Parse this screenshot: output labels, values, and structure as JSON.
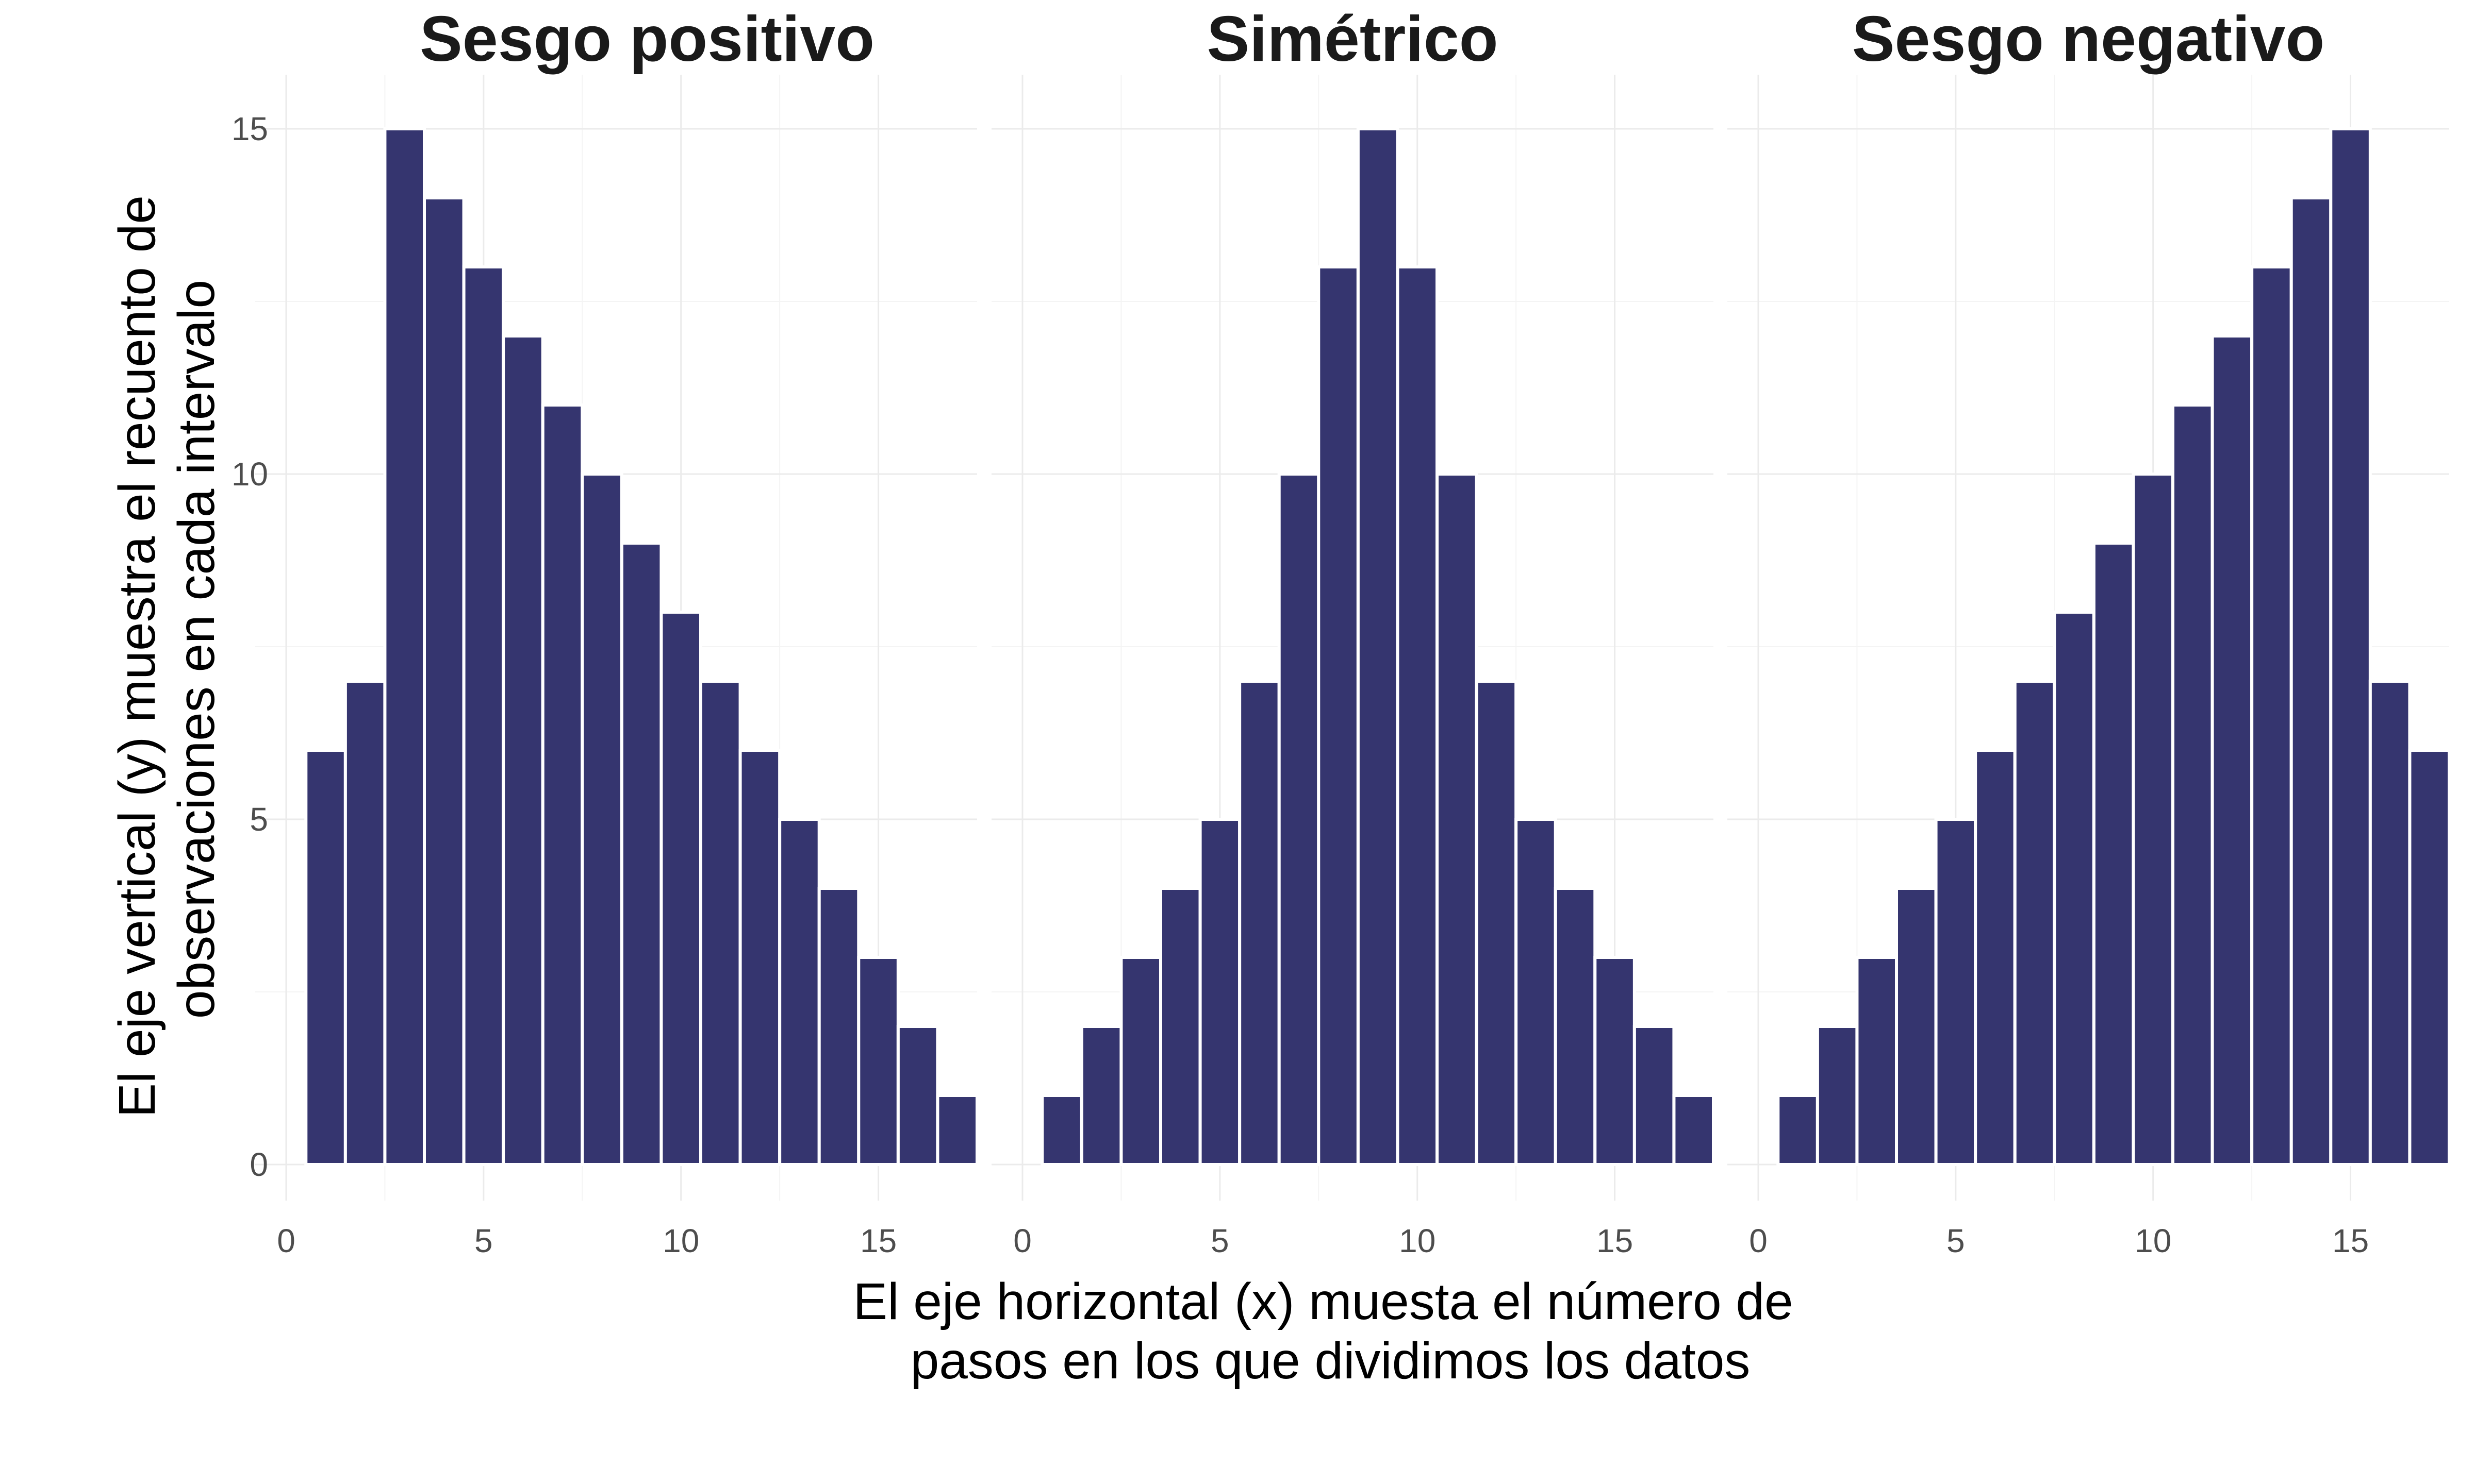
{
  "colors": {
    "bar": "#35356f",
    "background": "#ffffff"
  },
  "axis_titles": {
    "x": [
      "El eje horizontal (x) muesta el número de",
      "pasos en los que dividimos los datos"
    ],
    "y": [
      "El eje vertical (y) muestra el recuento de",
      "observaciones en cada intervalo"
    ]
  },
  "chart_data": [
    {
      "type": "bar",
      "title": "Sesgo positivo",
      "x": [
        1,
        2,
        3,
        4,
        5,
        6,
        7,
        8,
        9,
        10,
        11,
        12,
        13,
        14,
        15,
        16,
        17
      ],
      "values": [
        6,
        7,
        15,
        14,
        13,
        12,
        11,
        10,
        9,
        8,
        7,
        6,
        5,
        4,
        3,
        2,
        1
      ],
      "xlim": [
        0,
        17.5
      ],
      "ylim": [
        0,
        15
      ],
      "xticks": [
        0,
        5,
        10,
        15
      ],
      "yticks": [
        0,
        5,
        10,
        15
      ],
      "grid": true
    },
    {
      "type": "bar",
      "title": "Simétrico",
      "x": [
        1,
        2,
        3,
        4,
        5,
        6,
        7,
        8,
        9,
        10,
        11,
        12,
        13,
        14,
        15,
        16,
        17
      ],
      "values": [
        1,
        2,
        3,
        4,
        5,
        7,
        10,
        13,
        15,
        13,
        10,
        7,
        5,
        4,
        3,
        2,
        1
      ],
      "xlim": [
        0,
        17.5
      ],
      "ylim": [
        0,
        15
      ],
      "xticks": [
        0,
        5,
        10,
        15
      ],
      "yticks": [
        0,
        5,
        10,
        15
      ],
      "grid": true
    },
    {
      "type": "bar",
      "title": "Sesgo negativo",
      "x": [
        1,
        2,
        3,
        4,
        5,
        6,
        7,
        8,
        9,
        10,
        11,
        12,
        13,
        14,
        15,
        16,
        17
      ],
      "values": [
        1,
        2,
        3,
        4,
        5,
        6,
        7,
        8,
        9,
        10,
        11,
        12,
        13,
        14,
        15,
        7,
        6
      ],
      "xlim": [
        0,
        17.5
      ],
      "ylim": [
        0,
        15
      ],
      "xticks": [
        0,
        5,
        10,
        15
      ],
      "yticks": [
        0,
        5,
        10,
        15
      ],
      "grid": true
    }
  ]
}
